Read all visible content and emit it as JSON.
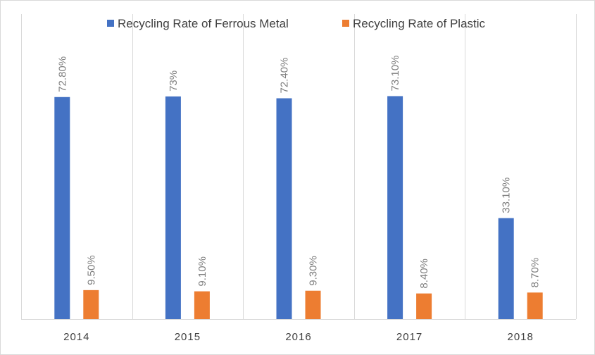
{
  "chart_data": {
    "type": "bar",
    "title": "",
    "xlabel": "",
    "ylabel": "",
    "categories": [
      "2014",
      "2015",
      "2016",
      "2017",
      "2018"
    ],
    "ylim": [
      0,
      100
    ],
    "grid": "vertical-separators",
    "legend_position": "top",
    "series": [
      {
        "name": "Recycling Rate of Ferrous Metal",
        "color": "#4472c4",
        "values": [
          72.8,
          73.0,
          72.4,
          73.1,
          33.1
        ],
        "labels": [
          "72.80%",
          "73%",
          "72.40%",
          "73.10%",
          "33.10%"
        ]
      },
      {
        "name": "Recycling Rate of Plastic",
        "color": "#ed7d31",
        "values": [
          9.5,
          9.1,
          9.3,
          8.4,
          8.7
        ],
        "labels": [
          "9.50%",
          "9.10%",
          "9.30%",
          "8.40%",
          "8.70%"
        ]
      }
    ]
  }
}
